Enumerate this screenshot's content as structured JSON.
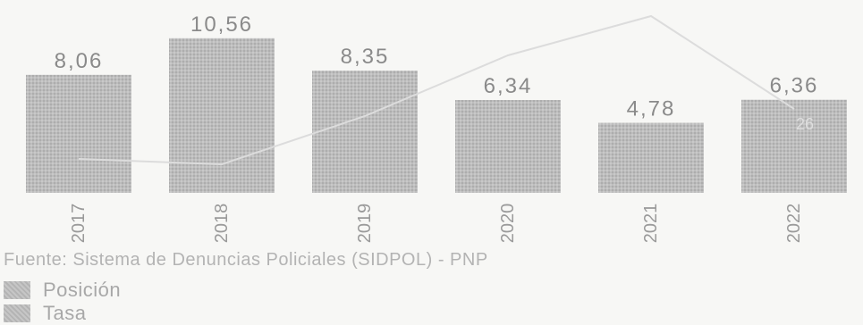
{
  "chart_data": {
    "type": "bar",
    "categories": [
      "2017",
      "2018",
      "2019",
      "2020",
      "2021",
      "2022"
    ],
    "series": [
      {
        "name": "Tasa",
        "type": "bar",
        "values": [
          8.06,
          10.56,
          8.35,
          6.34,
          4.78,
          6.36
        ],
        "data_labels": [
          "8,06",
          "10,56",
          "8,35",
          "6,34",
          "4,78",
          "6,36"
        ]
      },
      {
        "name": "Posición",
        "type": "line",
        "values": [
          null,
          null,
          null,
          null,
          null,
          null
        ]
      }
    ],
    "visible_line_label": "26",
    "colors": {
      "bar": "#b9b9b9",
      "line": "#dadada",
      "text": "#8a8a8a"
    }
  },
  "source": "Fuente: Sistema de Denuncias Policiales (SIDPOL) - PNP",
  "legend": [
    {
      "label": "Posición"
    },
    {
      "label": "Tasa"
    }
  ]
}
